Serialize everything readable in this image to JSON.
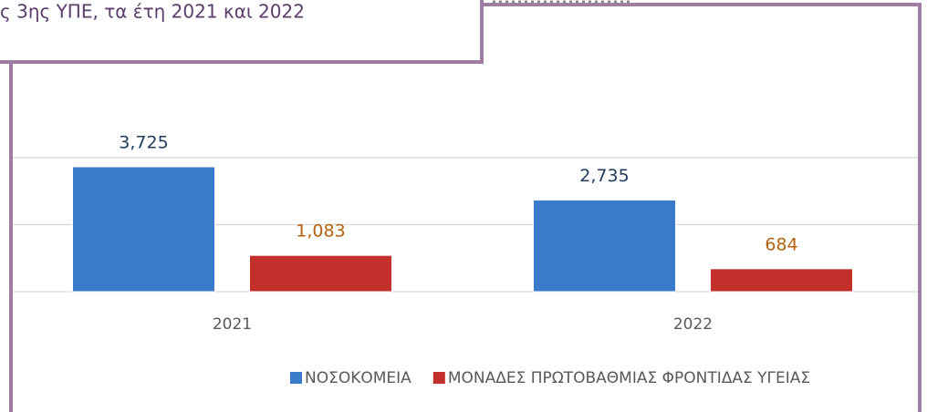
{
  "chart_data": {
    "type": "bar",
    "title": "ς 3ης ΥΠΕ, τα έτη 2021 και 2022",
    "categories": [
      "2021",
      "2022"
    ],
    "series": [
      {
        "name": "ΝΟΣΟΚΟΜΕΙΑ",
        "color": "#3b7bcb",
        "label_color": "#1f3b5e",
        "values": [
          3725,
          2735
        ],
        "value_labels": [
          "3,725",
          "2,735"
        ]
      },
      {
        "name": "ΜΟΝΑΔΕΣ ΠΡΩΤΟΒΑΘΜΙΑΣ ΦΡΟΝΤΙΔΑΣ ΥΓΕΙΑΣ",
        "color": "#c3302b",
        "label_color": "#b5620f",
        "values": [
          1083,
          684
        ],
        "value_labels": [
          "1,083",
          "684"
        ]
      }
    ],
    "ylim": [
      0,
      5600
    ],
    "yticks": [
      0,
      2000,
      4000
    ],
    "grid": true,
    "legend": "bottom"
  }
}
